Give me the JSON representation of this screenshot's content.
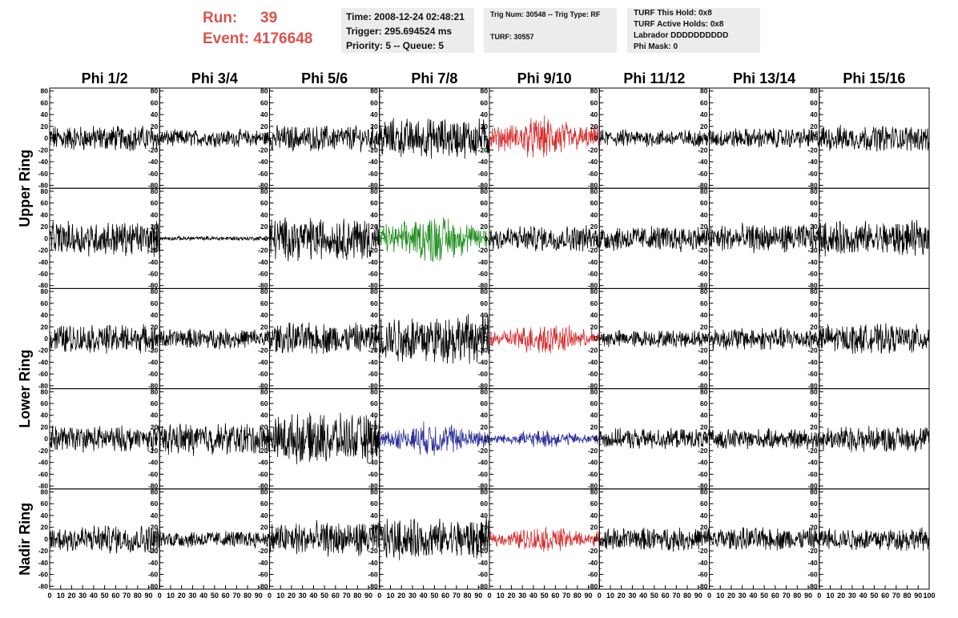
{
  "header": {
    "run_label": "Run:",
    "run_value": "39",
    "event_label": "Event:",
    "event_value": "4176648",
    "time_line": "Time: 2008-12-24 02:48:21",
    "trigger_line": "Trigger: 295.694524 ms",
    "priority_line": "Priority: 5 -- Queue: 5",
    "trig_num_line": "Trig Num: 30548 -- Trig Type: RF",
    "turf_line": "TURF: 30557",
    "turf_hold_line": "TURF This Hold: 0x8",
    "turf_active_line": "TURF Active Holds: 0x8",
    "labrador_line": "Labrador DDDDDDDDDD",
    "phi_mask_line": "Phi Mask: 0"
  },
  "chart_data": {
    "type": "line",
    "columns": [
      "Phi 1/2",
      "Phi 3/4",
      "Phi 5/6",
      "Phi 7/8",
      "Phi 9/10",
      "Phi 11/12",
      "Phi 13/14",
      "Phi 15/16"
    ],
    "ring_labels": [
      {
        "label": "Upper Ring",
        "rows": [
          0,
          1
        ]
      },
      {
        "label": "Lower Ring",
        "rows": [
          2,
          3
        ]
      },
      {
        "label": "Nadir Ring",
        "rows": [
          4
        ]
      }
    ],
    "ylim": [
      -85,
      85
    ],
    "y_ticks": [
      -80,
      -60,
      -40,
      -20,
      0,
      20,
      40,
      60,
      80
    ],
    "xlim": [
      0,
      100
    ],
    "x_ticks": [
      0,
      10,
      20,
      30,
      40,
      50,
      60,
      70,
      80,
      90,
      100
    ],
    "colors": {
      "default": "#000000",
      "red": "#d62d2d",
      "green": "#1f8f1f",
      "blue": "#2b2f9a"
    },
    "panels": [
      [
        {
          "amp": 18,
          "color": "default"
        },
        {
          "amp": 12,
          "color": "default"
        },
        {
          "amp": 18,
          "color": "default"
        },
        {
          "amp": 28,
          "color": "default"
        },
        {
          "amp": 30,
          "color": "red"
        },
        {
          "amp": 12,
          "color": "default"
        },
        {
          "amp": 14,
          "color": "default"
        },
        {
          "amp": 18,
          "color": "default"
        }
      ],
      [
        {
          "amp": 24,
          "color": "default"
        },
        {
          "amp": 3,
          "color": "default"
        },
        {
          "amp": 30,
          "color": "default"
        },
        {
          "amp": 34,
          "color": "green"
        },
        {
          "amp": 18,
          "color": "default"
        },
        {
          "amp": 18,
          "color": "default"
        },
        {
          "amp": 20,
          "color": "default"
        },
        {
          "amp": 24,
          "color": "default"
        }
      ],
      [
        {
          "amp": 20,
          "color": "default"
        },
        {
          "amp": 14,
          "color": "default"
        },
        {
          "amp": 22,
          "color": "default"
        },
        {
          "amp": 34,
          "color": "default"
        },
        {
          "amp": 22,
          "color": "red"
        },
        {
          "amp": 12,
          "color": "default"
        },
        {
          "amp": 16,
          "color": "default"
        },
        {
          "amp": 20,
          "color": "default"
        }
      ],
      [
        {
          "amp": 18,
          "color": "default"
        },
        {
          "amp": 22,
          "color": "default"
        },
        {
          "amp": 34,
          "color": "default"
        },
        {
          "amp": 24,
          "color": "blue"
        },
        {
          "amp": 12,
          "color": "blue"
        },
        {
          "amp": 14,
          "color": "default"
        },
        {
          "amp": 14,
          "color": "default"
        },
        {
          "amp": 18,
          "color": "default"
        }
      ],
      [
        {
          "amp": 20,
          "color": "default"
        },
        {
          "amp": 12,
          "color": "default"
        },
        {
          "amp": 24,
          "color": "default"
        },
        {
          "amp": 28,
          "color": "default"
        },
        {
          "amp": 18,
          "color": "red"
        },
        {
          "amp": 16,
          "color": "default"
        },
        {
          "amp": 16,
          "color": "default"
        },
        {
          "amp": 16,
          "color": "default"
        }
      ]
    ]
  }
}
